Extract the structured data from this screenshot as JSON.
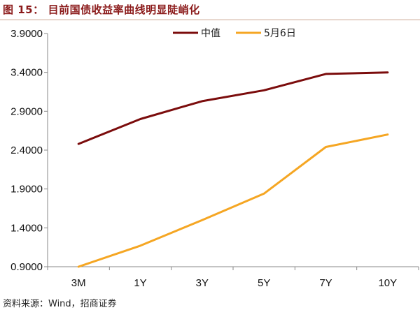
{
  "figure": {
    "label": "图 15：",
    "title": "目前国债收益率曲线明显陡峭化",
    "source": "资料来源：Wind，招商证券"
  },
  "chart_data": {
    "type": "line",
    "categories": [
      "3M",
      "1Y",
      "3Y",
      "5Y",
      "7Y",
      "10Y"
    ],
    "ylim": [
      0.9,
      3.9
    ],
    "yticks": [
      "0.9000",
      "1.4000",
      "1.9000",
      "2.4000",
      "2.9000",
      "3.4000",
      "3.9000"
    ],
    "grid": false,
    "legend_position": "top",
    "series": [
      {
        "name": "中值",
        "color": "#7B0C0C",
        "values": [
          2.48,
          2.8,
          3.03,
          3.17,
          3.38,
          3.4
        ]
      },
      {
        "name": "5月6日",
        "color": "#F5A623",
        "values": [
          0.9,
          1.17,
          1.5,
          1.84,
          2.44,
          2.6
        ]
      }
    ]
  }
}
